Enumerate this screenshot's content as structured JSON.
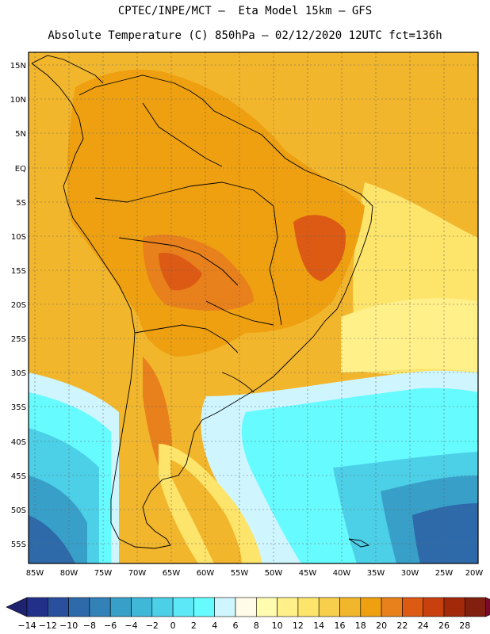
{
  "title_line1": "CPTEC/INPE/MCT –  Eta Model 15km – GFS",
  "title_line2": "Absolute Temperature (C) 850hPa – 02/12/2020 12UTC fct=136h",
  "lat_labels": [
    "15N",
    "10N",
    "5N",
    "EQ",
    "5S",
    "10S",
    "15S",
    "20S",
    "25S",
    "30S",
    "35S",
    "40S",
    "45S",
    "50S",
    "55S"
  ],
  "lon_labels": [
    "85W",
    "80W",
    "75W",
    "70W",
    "65W",
    "60W",
    "55W",
    "50W",
    "45W",
    "40W",
    "35W",
    "30W",
    "25W",
    "20W"
  ],
  "colorbar": {
    "labels": [
      "−14",
      "−12",
      "−10",
      "−8",
      "−6",
      "−4",
      "−2",
      "0",
      "2",
      "4",
      "6",
      "8",
      "10",
      "12",
      "14",
      "16",
      "18",
      "20",
      "22",
      "24",
      "26",
      "28"
    ],
    "colors": [
      "#22308a",
      "#2a4f9c",
      "#2e6aaa",
      "#3282b8",
      "#38a0c8",
      "#3fb8d8",
      "#4cd0e8",
      "#5ce8f6",
      "#66fbff",
      "#cff6ff",
      "#fffbe8",
      "#fffcb0",
      "#fff08a",
      "#fde46a",
      "#f7cf4c",
      "#f2b62c",
      "#eea010",
      "#e8801c",
      "#dd5a14",
      "#c8400e",
      "#a22a0a",
      "#822010"
    ],
    "low_arrow_color": "#1e2370",
    "high_arrow_color": "#7a0a2a"
  }
}
